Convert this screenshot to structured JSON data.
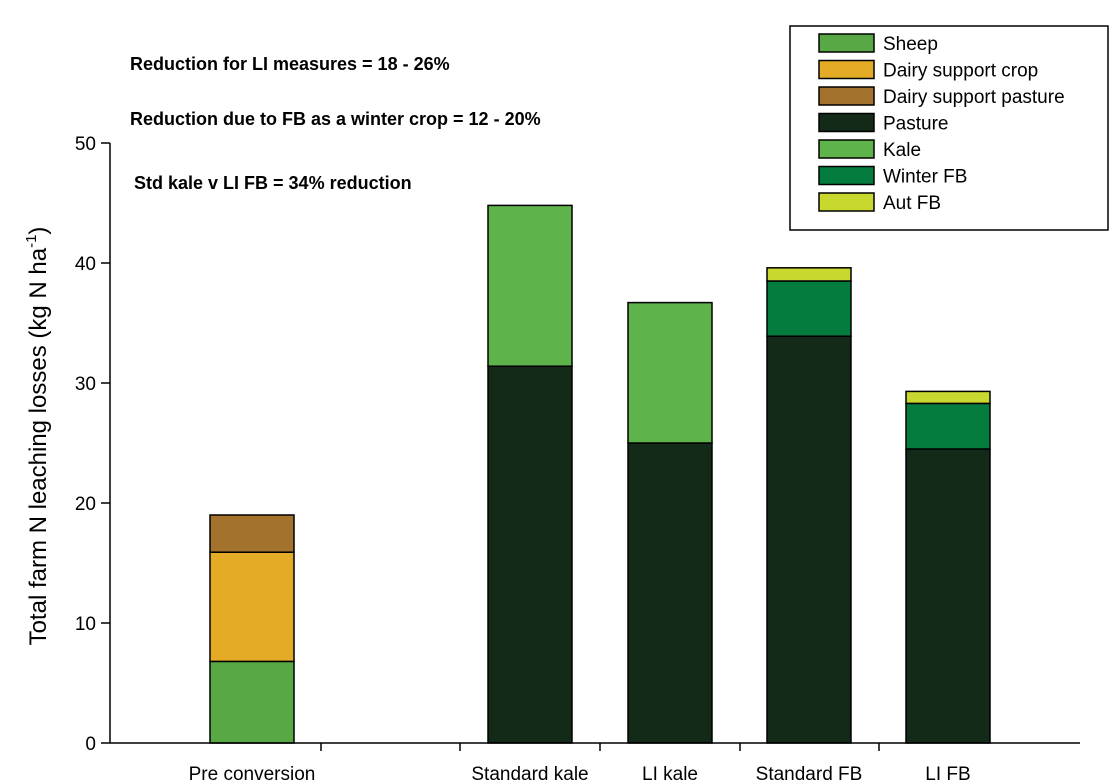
{
  "chart_data": {
    "type": "bar",
    "stacked": true,
    "ylabel": "Total farm N leaching losses (kg N ha",
    "ylabel_superscript": "-1",
    "ylabel_suffix": ")",
    "ylim": [
      0,
      50
    ],
    "yticks": [
      0,
      10,
      20,
      30,
      40,
      50
    ],
    "categories": [
      "Pre conversion",
      "",
      "Standard kale",
      "LI kale",
      "Standard FB",
      "LI FB"
    ],
    "series": [
      {
        "name": "Sheep",
        "color": "#58a846",
        "values": [
          6.8,
          0,
          0,
          0,
          0,
          0
        ]
      },
      {
        "name": "Dairy support crop",
        "color": "#e3ab26",
        "values": [
          9.1,
          0,
          0,
          0,
          0,
          0
        ]
      },
      {
        "name": "Dairy support pasture",
        "color": "#a3732e",
        "values": [
          3.1,
          0,
          0,
          0,
          0,
          0
        ]
      },
      {
        "name": "Pasture",
        "color": "#132a18",
        "values": [
          0,
          0,
          31.4,
          25.0,
          33.9,
          24.5
        ]
      },
      {
        "name": "Kale",
        "color": "#5eb44a",
        "values": [
          0,
          0,
          13.4,
          11.7,
          0,
          0
        ]
      },
      {
        "name": "Winter FB",
        "color": "#047c3e",
        "values": [
          0,
          0,
          0,
          0,
          4.6,
          3.8
        ]
      },
      {
        "name": "Aut FB",
        "color": "#c8d82e",
        "values": [
          0,
          0,
          0,
          0,
          1.1,
          1.0
        ]
      }
    ],
    "annotations": [
      "Reduction for LI measures = 18 - 26%",
      "Reduction due to FB as a winter crop = 12 - 20%",
      "Std kale v LI FB = 34% reduction"
    ],
    "legend_position": "top-right",
    "grid": false
  }
}
